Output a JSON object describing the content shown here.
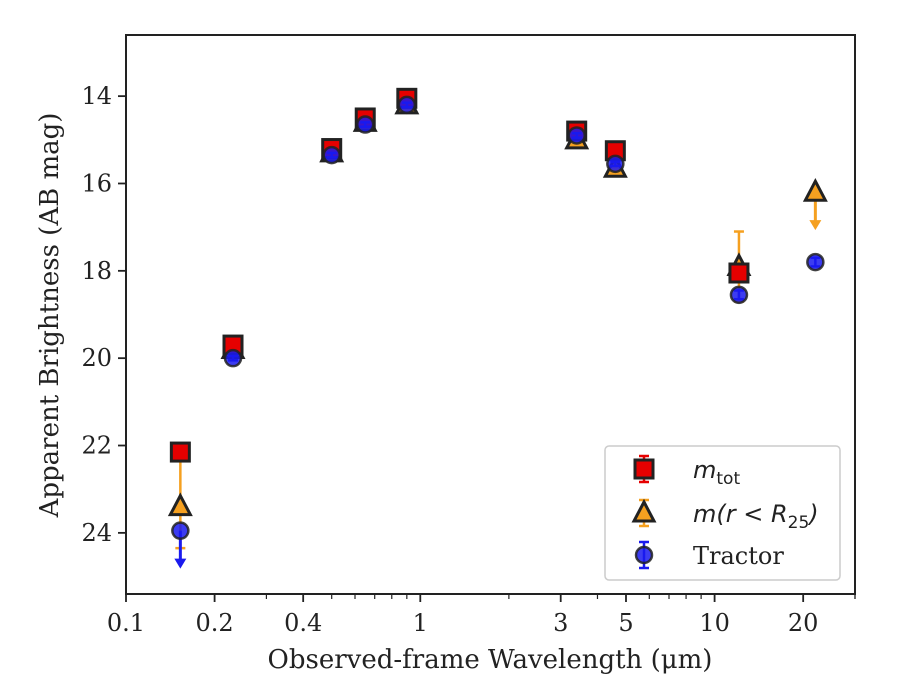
{
  "chart_data": {
    "type": "scatter",
    "xlabel": "Observed-frame Wavelength (μm)",
    "ylabel": "Apparent Brightness (AB mag)",
    "x_scale": "log",
    "xlim": [
      0.1,
      30
    ],
    "ylim": [
      25.4,
      12.6
    ],
    "y_inverted": true,
    "x_ticks": [
      0.1,
      0.2,
      0.4,
      1,
      3,
      5,
      10,
      20
    ],
    "x_tick_labels": [
      "0.1",
      "0.2",
      "0.4",
      "1",
      "3",
      "5",
      "10",
      "20"
    ],
    "y_ticks": [
      14,
      16,
      18,
      20,
      22,
      24
    ],
    "y_tick_labels": [
      "14",
      "16",
      "18",
      "20",
      "22",
      "24"
    ],
    "legend_position": "lower right",
    "colors": {
      "mtot": "#e60000",
      "mr25": "#f5a020",
      "tractor": "#1a1aee",
      "edge": "#222222"
    },
    "series": [
      {
        "key": "mtot",
        "marker": "square",
        "color": "#e60000",
        "points": [
          {
            "x": 0.153,
            "y": 22.15,
            "err": 0.1
          },
          {
            "x": 0.231,
            "y": 19.7,
            "err": 0.1
          },
          {
            "x": 0.5,
            "y": 15.2,
            "err": 0.1
          },
          {
            "x": 0.65,
            "y": 14.5,
            "err": 0.1
          },
          {
            "x": 0.9,
            "y": 14.05,
            "err": 0.1
          },
          {
            "x": 3.4,
            "y": 14.8,
            "err": 0.1
          },
          {
            "x": 4.6,
            "y": 15.25,
            "err": 0.1
          },
          {
            "x": 12.1,
            "y": 18.05,
            "err": 0.1
          }
        ]
      },
      {
        "key": "mr25",
        "marker": "triangle",
        "color": "#f5a020",
        "points": [
          {
            "x": 0.153,
            "y": 23.4,
            "err_low": 1.05,
            "err_high": 0.95
          },
          {
            "x": 0.231,
            "y": 19.8,
            "err": 0.1
          },
          {
            "x": 0.5,
            "y": 15.3,
            "err": 0.05
          },
          {
            "x": 0.65,
            "y": 14.6,
            "err": 0.05
          },
          {
            "x": 0.9,
            "y": 14.2,
            "err": 0.05
          },
          {
            "x": 3.4,
            "y": 15.0,
            "err": 0.05
          },
          {
            "x": 4.6,
            "y": 15.65,
            "err": 0.05
          },
          {
            "x": 12.1,
            "y": 17.9,
            "err": 0.8
          },
          {
            "x": 22.0,
            "y": 16.2,
            "upper_limit": true
          }
        ]
      },
      {
        "key": "tractor",
        "marker": "circle",
        "color": "#1a1aee",
        "points": [
          {
            "x": 0.153,
            "y": 23.95,
            "upper_limit": true
          },
          {
            "x": 0.231,
            "y": 20.0,
            "err": 0.05
          },
          {
            "x": 0.5,
            "y": 15.35,
            "err": 0.05
          },
          {
            "x": 0.65,
            "y": 14.65,
            "err": 0.05
          },
          {
            "x": 0.9,
            "y": 14.2,
            "err": 0.05
          },
          {
            "x": 3.4,
            "y": 14.9,
            "err": 0.05
          },
          {
            "x": 4.6,
            "y": 15.55,
            "err": 0.05
          },
          {
            "x": 12.1,
            "y": 18.55,
            "err": 0.1
          },
          {
            "x": 22.0,
            "y": 17.8,
            "err": 0.1
          }
        ]
      }
    ],
    "legend": [
      {
        "key": "mtot",
        "base": "m",
        "sub": "tot"
      },
      {
        "key": "mr25",
        "base": "m(r < R",
        "sub": "25",
        "suffix": ")"
      },
      {
        "key": "tractor",
        "text": "Tractor"
      }
    ]
  }
}
